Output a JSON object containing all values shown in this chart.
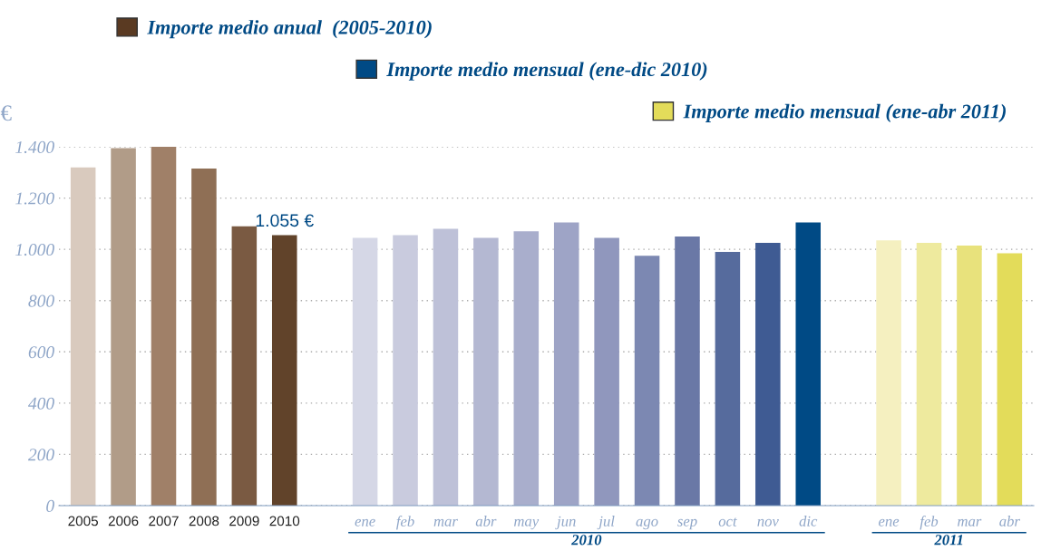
{
  "chart_data": {
    "type": "bar",
    "ylabel": "€",
    "categories": [
      "2005",
      "2006",
      "2007",
      "2008",
      "2009",
      "2010",
      null,
      "ene",
      "feb",
      "mar",
      "abr",
      "may",
      "jun",
      "jul",
      "ago",
      "sep",
      "oct",
      "nov",
      "dic",
      null,
      "ene",
      "feb",
      "mar",
      "abr"
    ],
    "series": [
      {
        "name": "Importe medio anual  (2005-2010)",
        "color": "#5a3a22",
        "values": [
          1320,
          1395,
          1400,
          1315,
          1090,
          1055,
          null,
          null,
          null,
          null,
          null,
          null,
          null,
          null,
          null,
          null,
          null,
          null,
          null,
          null,
          null,
          null,
          null,
          null
        ],
        "colors": [
          "#d9cabe",
          "#b19c88",
          "#a08068",
          "#8f6f55",
          "#7a5a42",
          "#61432a",
          null,
          null,
          null,
          null,
          null,
          null,
          null,
          null,
          null,
          null,
          null,
          null,
          null,
          null,
          null,
          null,
          null,
          null
        ],
        "value_labels": [
          null,
          null,
          null,
          null,
          null,
          "1.055 €",
          null,
          null,
          null,
          null,
          null,
          null,
          null,
          null,
          null,
          null,
          null,
          null,
          null,
          null,
          null,
          null,
          null,
          null
        ]
      },
      {
        "name": "Importe medio mensual (ene-dic 2010)",
        "color": "#004a85",
        "values": [
          null,
          null,
          null,
          null,
          null,
          null,
          null,
          1045,
          1055,
          1080,
          1045,
          1070,
          1105,
          1045,
          975,
          1050,
          990,
          1025,
          1105,
          null,
          null,
          null,
          null,
          null
        ],
        "colors": [
          null,
          null,
          null,
          null,
          null,
          null,
          null,
          "#d5d7e6",
          "#c9cbde",
          "#bec1d8",
          "#b4b8d2",
          "#a9aecc",
          "#9ea4c6",
          "#9097bd",
          "#7c88b2",
          "#6a78a6",
          "#566b9d",
          "#3f5b93",
          "#004a85",
          null,
          null,
          null,
          null,
          null
        ]
      },
      {
        "name": "Importe medio mensual (ene-abr 2011)",
        "color": "#e3dc5a",
        "values": [
          null,
          null,
          null,
          null,
          null,
          null,
          null,
          null,
          null,
          null,
          null,
          null,
          null,
          null,
          null,
          null,
          null,
          null,
          null,
          null,
          1035,
          1025,
          1015,
          985
        ],
        "colors": [
          null,
          null,
          null,
          null,
          null,
          null,
          null,
          null,
          null,
          null,
          null,
          null,
          null,
          null,
          null,
          null,
          null,
          null,
          null,
          null,
          "#f5f0c0",
          "#eeea9e",
          "#e8e27c",
          "#e3dc5a"
        ]
      }
    ],
    "annotations": [
      {
        "text": "2010"
      },
      {
        "text": "2011"
      }
    ],
    "ylim": [
      0,
      1400
    ],
    "yticks": [
      0,
      {
        "value": 200,
        "label": "200"
      },
      {
        "value": 400,
        "label": "400"
      },
      {
        "value": 600,
        "label": "600"
      },
      {
        "value": 800,
        "label": "800"
      },
      {
        "value": 1000,
        "label": "1.000"
      },
      {
        "value": 1200,
        "label": "1.200"
      },
      {
        "value": 1400,
        "label": "1.400"
      }
    ],
    "grid": "y",
    "legend": "top"
  }
}
